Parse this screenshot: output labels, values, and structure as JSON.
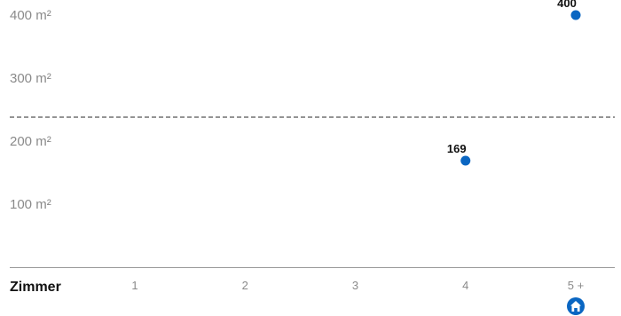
{
  "chart_data": {
    "type": "scatter",
    "x_title": "Zimmer",
    "categories": [
      "1",
      "2",
      "3",
      "4",
      "5 +"
    ],
    "y_ticks": [
      {
        "value": 100,
        "label": "100 m²"
      },
      {
        "value": 200,
        "label": "200 m²"
      },
      {
        "value": 300,
        "label": "300 m²"
      },
      {
        "value": 400,
        "label": "400 m²"
      }
    ],
    "ylim": [
      0,
      420
    ],
    "reference_line": {
      "value": 238,
      "style": "dashed"
    },
    "points": [
      {
        "category": "4",
        "value": 169,
        "label": "169"
      },
      {
        "category": "5 +",
        "value": 400,
        "label": "400"
      }
    ],
    "grid": false,
    "marker_color": "#0a66c2",
    "axis_color": "#9a9a9a",
    "reference_color": "#555555",
    "category_icon": {
      "category": "5 +",
      "icon": "house-icon"
    }
  }
}
